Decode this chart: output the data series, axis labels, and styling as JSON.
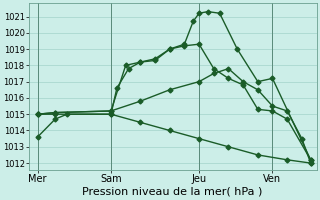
{
  "background_color": "#cceee8",
  "grid_color": "#aad8d0",
  "line_color": "#1a5c28",
  "marker": "D",
  "markersize": 2.5,
  "linewidth": 1.0,
  "xlabel": "Pression niveau de la mer( hPa )",
  "xlabel_fontsize": 8,
  "yticks": [
    1012,
    1013,
    1014,
    1015,
    1016,
    1017,
    1018,
    1019,
    1020,
    1021
  ],
  "ylim": [
    1011.6,
    1021.8
  ],
  "xtick_labels": [
    "Mer",
    "Sam",
    "Jeu",
    "Ven"
  ],
  "xtick_positions": [
    0.0,
    2.5,
    5.5,
    8.0
  ],
  "xlim": [
    -0.3,
    9.5
  ],
  "vline_positions": [
    0.0,
    2.5,
    5.5,
    8.0
  ],
  "series": [
    {
      "x": [
        0.0,
        0.6,
        1.0,
        2.5,
        2.7,
        3.1,
        3.5,
        4.0,
        4.5,
        5.0,
        5.3,
        5.5,
        5.8,
        6.2,
        6.8,
        7.5,
        8.0,
        9.3
      ],
      "y": [
        1013.6,
        1014.7,
        1015.0,
        1015.0,
        1016.6,
        1017.8,
        1018.2,
        1018.3,
        1019.0,
        1019.3,
        1020.7,
        1021.2,
        1021.3,
        1021.2,
        1019.0,
        1017.0,
        1017.2,
        1012.2
      ]
    },
    {
      "x": [
        0.0,
        0.6,
        2.5,
        3.0,
        3.5,
        4.0,
        4.5,
        5.0,
        5.5,
        6.0,
        6.5,
        7.0,
        7.5,
        8.0,
        8.5,
        9.3
      ],
      "y": [
        1015.0,
        1015.1,
        1015.2,
        1018.0,
        1018.2,
        1018.4,
        1019.0,
        1019.2,
        1019.3,
        1017.8,
        1017.2,
        1016.8,
        1015.3,
        1015.2,
        1014.7,
        1012.2
      ]
    },
    {
      "x": [
        0.0,
        0.6,
        2.5,
        3.5,
        4.5,
        5.5,
        6.0,
        6.5,
        7.0,
        7.5,
        8.0,
        8.5,
        9.0,
        9.3
      ],
      "y": [
        1015.0,
        1015.1,
        1015.2,
        1015.8,
        1016.5,
        1017.0,
        1017.5,
        1017.8,
        1017.0,
        1016.5,
        1015.5,
        1015.2,
        1013.5,
        1012.0
      ]
    },
    {
      "x": [
        0.0,
        0.6,
        2.5,
        3.5,
        4.5,
        5.5,
        6.5,
        7.5,
        8.5,
        9.3
      ],
      "y": [
        1015.0,
        1015.0,
        1015.0,
        1014.5,
        1014.0,
        1013.5,
        1013.0,
        1012.5,
        1012.2,
        1012.0
      ]
    }
  ]
}
